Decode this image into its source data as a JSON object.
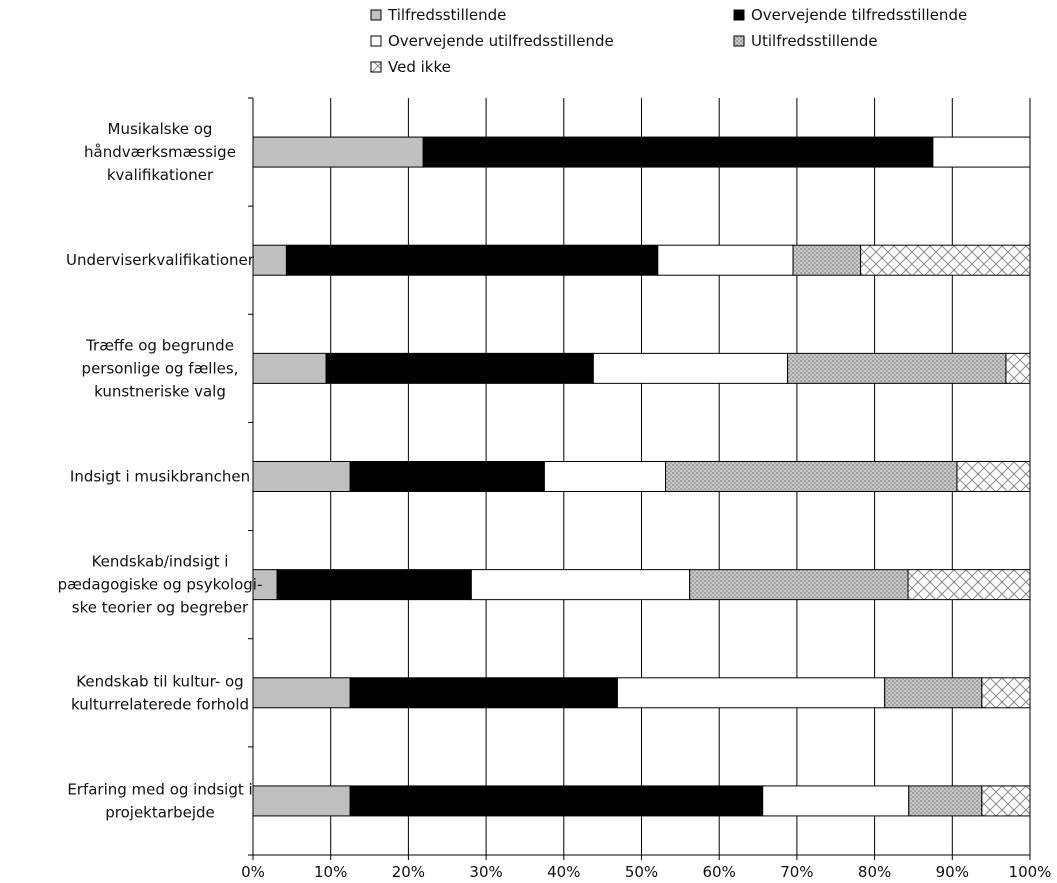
{
  "chart_data": {
    "type": "bar",
    "orientation": "horizontal",
    "stacked": true,
    "title": "",
    "xlabel": "",
    "ylabel": "",
    "xlim": [
      0,
      100
    ],
    "x_tick_labels": [
      "0%",
      "10%",
      "20%",
      "30%",
      "40%",
      "50%",
      "60%",
      "70%",
      "80%",
      "90%",
      "100%"
    ],
    "grid": "vertical",
    "legend_position": "top",
    "categories": [
      [
        "Musikalske og",
        "håndværksmæssige",
        "kvalifikationer"
      ],
      [
        "Underviserkvalifikationer"
      ],
      [
        "Træffe og begrunde",
        "personlige og fælles,",
        "kunstneriske valg"
      ],
      [
        "Indsigt i musikbranchen"
      ],
      [
        "Kendskab/indsigt i",
        "pædagogiske og psykologi-",
        "ske teorier og begreber"
      ],
      [
        "Kendskab til kultur- og",
        "kulturrelaterede forhold"
      ],
      [
        "Erfaring med og indsigt i",
        "projektarbejde"
      ]
    ],
    "series": [
      {
        "name": "Tilfredsstillende",
        "fill": "gray",
        "values": [
          21.9,
          4.3,
          9.4,
          12.5,
          3.1,
          12.5,
          12.5
        ]
      },
      {
        "name": "Overvejende tilfredsstillende",
        "fill": "black",
        "values": [
          65.6,
          47.8,
          34.4,
          25.0,
          25.0,
          34.4,
          53.1
        ]
      },
      {
        "name": "Overvejende utilfredsstillende",
        "fill": "white",
        "values": [
          12.5,
          17.4,
          25.0,
          15.6,
          28.1,
          34.4,
          18.8
        ]
      },
      {
        "name": "Utilfredsstillende",
        "fill": "dots",
        "values": [
          0,
          8.7,
          28.1,
          37.5,
          28.1,
          12.5,
          9.4
        ]
      },
      {
        "name": "Ved ikke",
        "fill": "crosshatch",
        "values": [
          0,
          21.8,
          3.1,
          9.4,
          15.7,
          6.2,
          6.2
        ]
      }
    ]
  }
}
